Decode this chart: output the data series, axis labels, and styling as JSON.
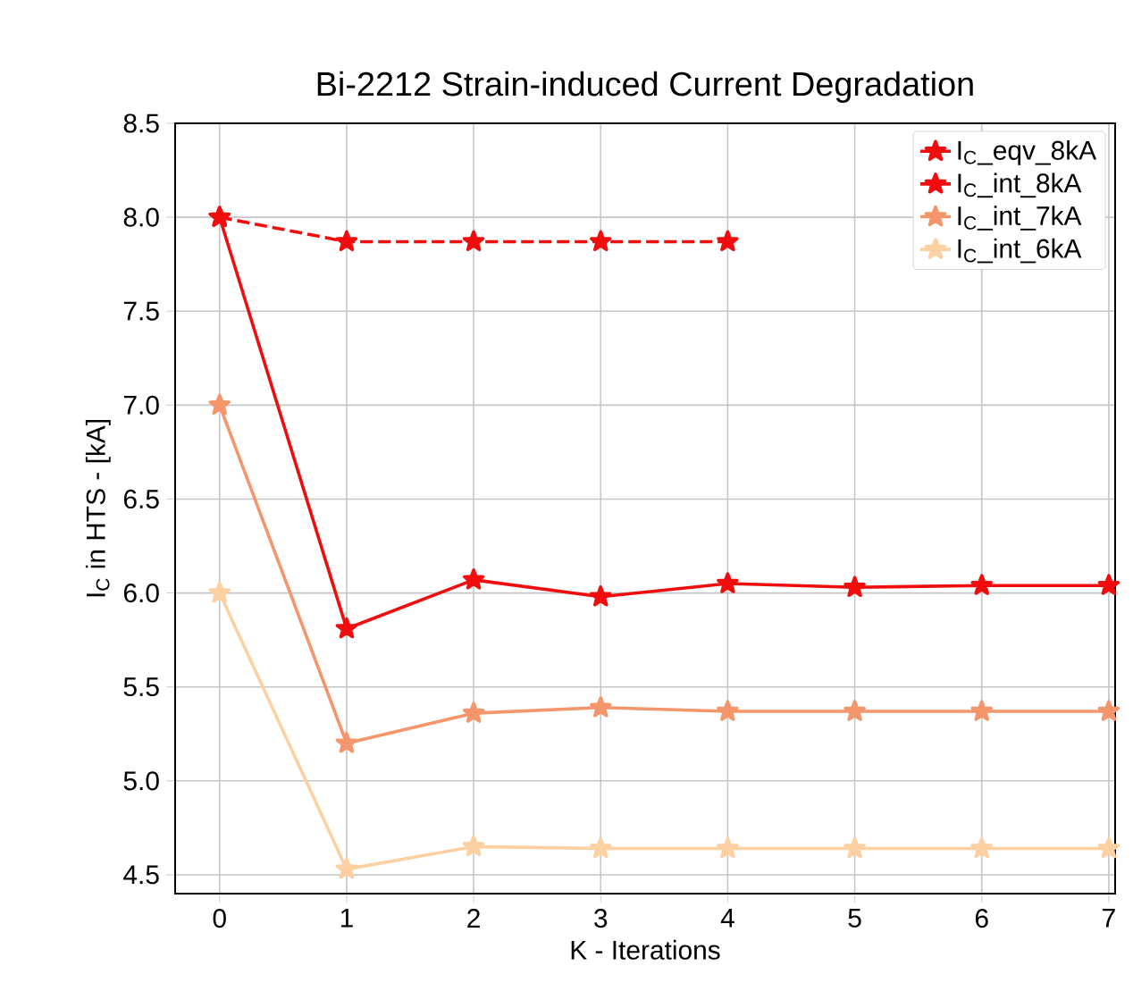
{
  "chart_data": {
    "type": "line",
    "title": "Bi-2212 Strain-induced Current Degradation",
    "xlabel": "K - Iterations",
    "ylabel": "I$_{C}$ in HTS - [kA]",
    "x": [
      0,
      1,
      2,
      3,
      4,
      5,
      6,
      7
    ],
    "series": [
      {
        "name": "I$_{C}$_eqv_8kA",
        "color": "#f00d0d",
        "line_style": "dashed",
        "values": [
          8.0,
          7.87,
          7.87,
          7.87,
          7.87,
          null,
          null,
          null
        ]
      },
      {
        "name": "I$_{C}$_int_8kA",
        "color": "#f00d0d",
        "line_style": "solid",
        "values": [
          8.0,
          5.81,
          6.07,
          5.98,
          6.05,
          6.03,
          6.04,
          6.04
        ]
      },
      {
        "name": "I$_{C}$_int_7kA",
        "color": "#f4956b",
        "line_style": "solid",
        "values": [
          7.0,
          5.2,
          5.36,
          5.39,
          5.37,
          5.37,
          5.37,
          5.37
        ]
      },
      {
        "name": "I$_{C}$_int_6kA",
        "color": "#fdd0a2",
        "line_style": "solid",
        "values": [
          6.0,
          4.53,
          4.65,
          4.64,
          4.64,
          4.64,
          4.64,
          4.64
        ]
      }
    ],
    "xlim": [
      -0.35,
      7.05
    ],
    "ylim": [
      4.4,
      8.5
    ],
    "xticks": [
      0,
      1,
      2,
      3,
      4,
      5,
      6,
      7
    ],
    "yticks": [
      {
        "value": 4.5,
        "label": "4.5"
      },
      {
        "value": 5.0,
        "label": "5.0"
      },
      {
        "value": 5.5,
        "label": "5.5"
      },
      {
        "value": 6.0,
        "label": "6.0"
      },
      {
        "value": 6.5,
        "label": "6.5"
      },
      {
        "value": 7.0,
        "label": "7.0"
      },
      {
        "value": 7.5,
        "label": "7.5"
      },
      {
        "value": 8.0,
        "label": "8.0"
      },
      {
        "value": 8.5,
        "label": "8.5"
      }
    ],
    "grid": true,
    "legend": "top right",
    "marker": "star"
  }
}
